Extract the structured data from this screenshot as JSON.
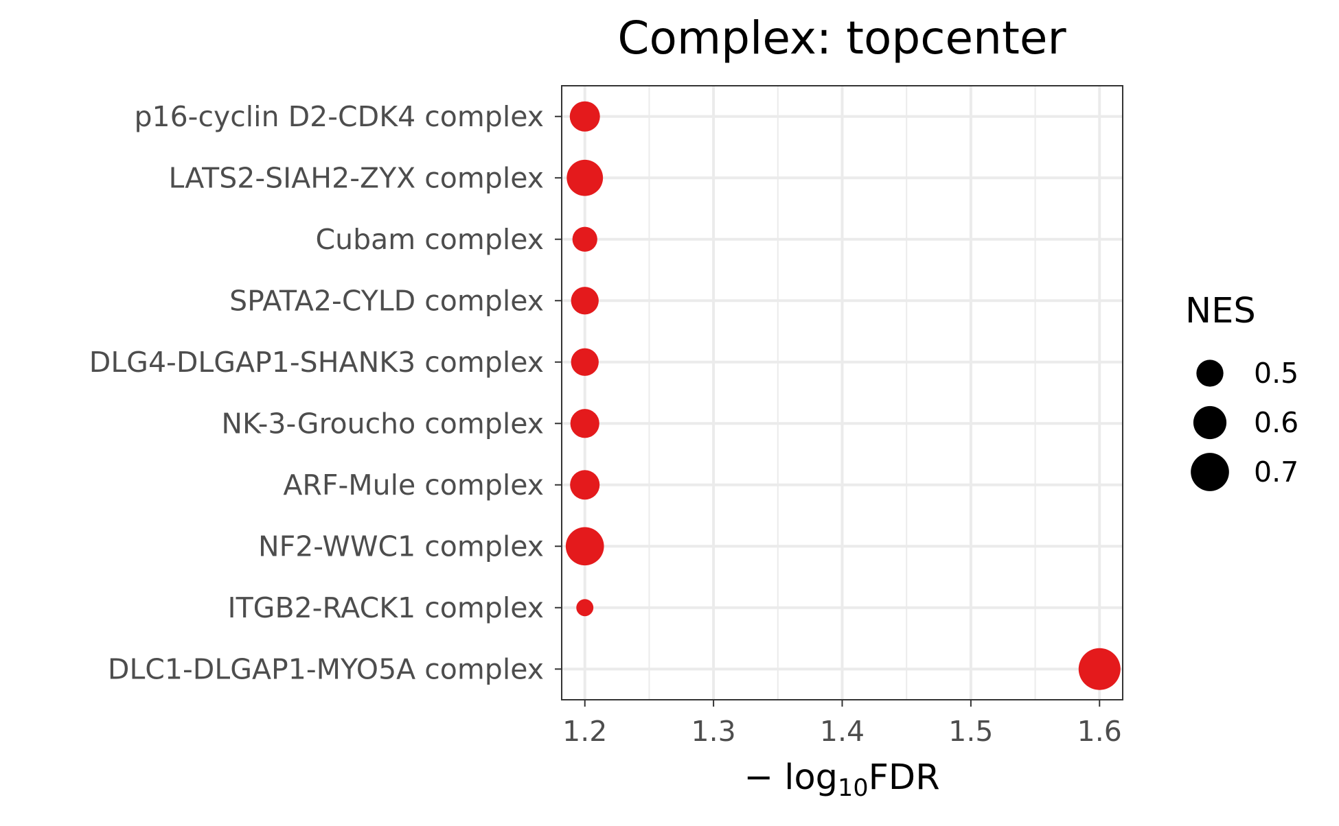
{
  "chart_data": {
    "type": "scatter",
    "title": "Complex: topcenter",
    "xlabel": {
      "prefix": "− log",
      "subscript": "10",
      "suffix": "FDR"
    },
    "ylabel": "",
    "xlim": [
      1.182,
      1.618
    ],
    "xticks": [
      "1.2",
      "1.3",
      "1.4",
      "1.5",
      "1.6"
    ],
    "categories": [
      "p16-cyclin D2-CDK4 complex",
      "LATS2-SIAH2-ZYX complex",
      "Cubam complex",
      "SPATA2-CYLD complex",
      "DLG4-DLGAP1-SHANK3 complex",
      "NK-3-Groucho complex",
      "ARF-Mule complex",
      "NF2-WWC1 complex",
      "ITGB2-RACK1 complex",
      "DLC1-DLGAP1-MYO5A complex"
    ],
    "points": [
      {
        "category": "p16-cyclin D2-CDK4 complex",
        "x": 1.2,
        "nes": 0.55
      },
      {
        "category": "LATS2-SIAH2-ZYX complex",
        "x": 1.2,
        "nes": 0.66
      },
      {
        "category": "Cubam complex",
        "x": 1.2,
        "nes": 0.47
      },
      {
        "category": "SPATA2-CYLD complex",
        "x": 1.2,
        "nes": 0.51
      },
      {
        "category": "DLG4-DLGAP1-SHANK3 complex",
        "x": 1.2,
        "nes": 0.51
      },
      {
        "category": "NK-3-Groucho complex",
        "x": 1.2,
        "nes": 0.53
      },
      {
        "category": "ARF-Mule complex",
        "x": 1.2,
        "nes": 0.54
      },
      {
        "category": "NF2-WWC1 complex",
        "x": 1.2,
        "nes": 0.7
      },
      {
        "category": "ITGB2-RACK1 complex",
        "x": 1.2,
        "nes": 0.38
      },
      {
        "category": "DLC1-DLGAP1-MYO5A complex",
        "x": 1.6,
        "nes": 0.78
      }
    ],
    "point_color": "#e41a1c",
    "grid": true,
    "legend": {
      "title": "NES",
      "position": "right",
      "entries": [
        {
          "label": "0.5",
          "value": 0.5
        },
        {
          "label": "0.6",
          "value": 0.6
        },
        {
          "label": "0.7",
          "value": 0.7
        }
      ]
    }
  }
}
